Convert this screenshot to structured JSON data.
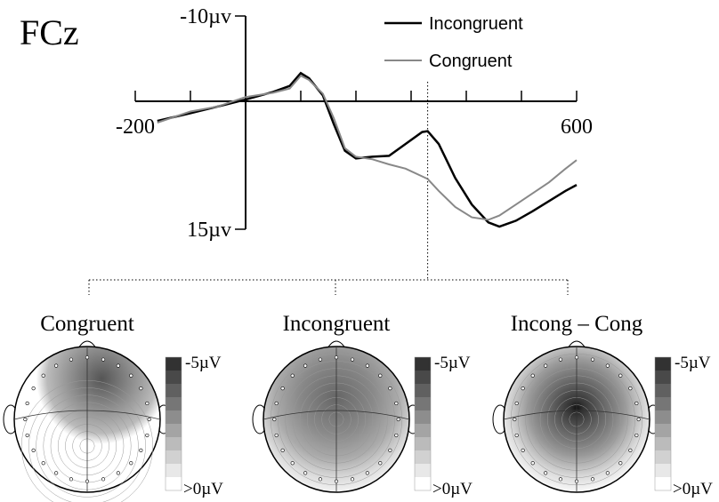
{
  "chart_data": {
    "type": "line",
    "title": "FCz",
    "x": [
      -160,
      -100,
      -50,
      0,
      50,
      80,
      100,
      115,
      140,
      160,
      180,
      200,
      230,
      260,
      290,
      320,
      330,
      350,
      380,
      410,
      440,
      460,
      490,
      520,
      550,
      580,
      600
    ],
    "series": [
      {
        "name": "Incongruent",
        "color": "#000000",
        "values": [
          2.3,
          1.4,
          0.6,
          -0.2,
          -1.1,
          -1.8,
          -3.3,
          -2.7,
          -0.7,
          2.7,
          5.8,
          6.7,
          6.5,
          6.4,
          5.0,
          3.6,
          3.5,
          5.0,
          9.0,
          12.1,
          14.2,
          14.7,
          14.0,
          12.9,
          11.7,
          10.5,
          9.8
        ]
      },
      {
        "name": "Congruent",
        "color": "#888888",
        "values": [
          2.5,
          1.2,
          0.6,
          -0.5,
          -1.0,
          -1.5,
          -3.0,
          -2.5,
          -0.9,
          2.0,
          5.5,
          6.5,
          6.8,
          7.4,
          7.9,
          8.8,
          9.1,
          10.5,
          12.4,
          13.6,
          13.9,
          13.4,
          12.1,
          10.8,
          9.5,
          7.9,
          6.9
        ]
      }
    ],
    "xlim": [
      -200,
      600
    ],
    "xticks": [
      -200,
      600
    ],
    "minor_xticks": [
      -100,
      0,
      100,
      200,
      300,
      400,
      500
    ],
    "ylim": [
      -10,
      15
    ],
    "yticks": [
      {
        "value": -10,
        "label": "-10µv"
      },
      {
        "value": 15,
        "label": "15µv"
      }
    ],
    "y_inverted": true,
    "marker_x": 330,
    "legend": "top-right"
  },
  "topomaps": [
    {
      "title": "Congruent",
      "scale_top": "-5µV",
      "scale_bottom": ">0µV"
    },
    {
      "title": "Incongruent",
      "scale_top": "-5µV",
      "scale_bottom": ">0µV"
    },
    {
      "title": "Incong – Cong",
      "scale_top": "-5µV",
      "scale_bottom": ">0µV"
    }
  ]
}
